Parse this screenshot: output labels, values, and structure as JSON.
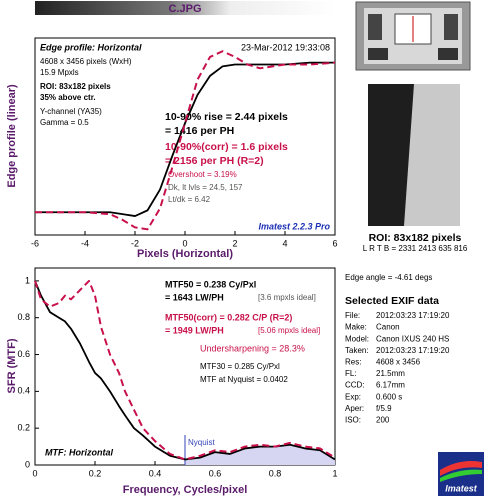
{
  "title": "C.JPG",
  "chart_data": [
    {
      "type": "line",
      "x_label": "Pixels (Horizontal)",
      "y_label": "Edge profile (linear)",
      "x": [
        -6,
        -5,
        -4,
        -3,
        -2.5,
        -2,
        -1.5,
        -1,
        -0.5,
        0,
        0.5,
        1,
        1.5,
        2,
        2.5,
        3,
        4,
        5,
        6
      ],
      "series": [
        {
          "color": "#000000",
          "values": [
            0.08,
            0.08,
            0.08,
            0.08,
            0.07,
            0.06,
            0.09,
            0.2,
            0.38,
            0.55,
            0.7,
            0.8,
            0.85,
            0.86,
            0.86,
            0.86,
            0.86,
            0.87,
            0.87
          ]
        },
        {
          "color": "#c8104a",
          "dashed": true,
          "values": [
            0.08,
            0.08,
            0.08,
            0.07,
            0.04,
            0.0,
            -0.01,
            0.1,
            0.32,
            0.55,
            0.78,
            0.9,
            0.93,
            0.9,
            0.86,
            0.84,
            0.86,
            0.86,
            0.87
          ]
        }
      ],
      "xlim": [
        -6,
        6
      ],
      "xticks": [
        -6,
        -4,
        -2,
        0,
        2,
        4,
        6
      ],
      "ylim": [
        -0.04,
        1
      ],
      "yticks": [],
      "annotations": [
        "Edge profile: Horizontal",
        "23-Mar-2012 19:33:08",
        "4608 x 3456 pixels (WxH)",
        "15.9 Mpxls",
        "ROI: 83x182 pixels",
        "35% above ctr.",
        "Y-channel (YA35)",
        "Gamma = 0.5",
        "10-90% rise = 2.44 pixels",
        "= 1416 per PH",
        "10-90%(corr) = 1.6 pixels",
        "= 2156 per PH  (R=2)",
        "Overshoot = 3.19%",
        "Dk, lt lvls = 24.5, 157",
        "Lt/dk = 6.42",
        "Imatest 2.2.3 Pro"
      ]
    },
    {
      "type": "line",
      "x_label": "Frequency, Cycles/pixel",
      "y_label": "SFR (MTF)",
      "x": [
        0,
        0.02,
        0.05,
        0.08,
        0.1,
        0.12,
        0.15,
        0.18,
        0.2,
        0.22,
        0.25,
        0.28,
        0.3,
        0.33,
        0.36,
        0.4,
        0.45,
        0.5,
        0.55,
        0.6,
        0.65,
        0.7,
        0.75,
        0.8,
        0.85,
        0.9,
        0.95,
        1
      ],
      "series": [
        {
          "color": "#000000",
          "values": [
            1,
            0.92,
            0.83,
            0.8,
            0.78,
            0.74,
            0.66,
            0.56,
            0.5,
            0.47,
            0.4,
            0.32,
            0.27,
            0.2,
            0.16,
            0.1,
            0.05,
            0.03,
            0.04,
            0.07,
            0.06,
            0.09,
            0.1,
            0.1,
            0.11,
            0.09,
            0.08,
            0.03
          ]
        },
        {
          "color": "#c8104a",
          "dashed": true,
          "values": [
            1,
            0.9,
            0.86,
            0.88,
            0.92,
            0.9,
            0.95,
            1,
            0.92,
            0.75,
            0.6,
            0.5,
            0.4,
            0.3,
            0.2,
            0.13,
            0.06,
            0.03,
            0.05,
            0.08,
            0.07,
            0.1,
            0.11,
            0.1,
            0.12,
            0.1,
            0.09,
            0.04
          ]
        }
      ],
      "xlim": [
        0,
        1
      ],
      "xticks": [
        0,
        {
          "value": 0.2,
          "label": "0.2"
        },
        {
          "value": 0.4,
          "label": "0.4"
        },
        {
          "value": 0.6,
          "label": "0.6"
        },
        {
          "value": 0.8,
          "label": "0.8"
        },
        1
      ],
      "ylim": [
        0,
        1.07
      ],
      "yticks": [
        0,
        0.2,
        0.4,
        0.6,
        0.8,
        1
      ],
      "nyquist": {
        "value": 0.5,
        "label": "Nyquist"
      },
      "annotations": [
        "MTF50 = 0.238 Cy/Pxl",
        "= 1643 LW/PH",
        "[3.6 mpxls ideal]",
        "MTF50(corr) = 0.282 C/P  (R=2)",
        "= 1949 LW/PH",
        "[5.06 mpxls ideal]",
        "Undersharpening = 28.3%",
        "MTF30 = 0.285 Cy/Pxl",
        "MTF at Nyquist = 0.0402",
        "MTF: Horizontal"
      ]
    }
  ],
  "roi": {
    "title": "ROI: 83x182 pixels",
    "coords": "L R T B = 2331 2413 635 816"
  },
  "edge_angle": "Edge angle = -4.61 degs",
  "exif": {
    "title": "Selected EXIF data",
    "rows": [
      [
        "File:",
        "2012:03:23 17:19:20"
      ],
      [
        "Make:",
        "Canon"
      ],
      [
        "Model:",
        "Canon IXUS 240 HS"
      ],
      [
        "Taken:",
        "2012:03:23 17:19:20"
      ],
      [
        "Res:",
        "4608 x 3456"
      ],
      [
        "FL:",
        "21.5mm"
      ],
      [
        "CCD:",
        "6.17mm"
      ],
      [
        "Exp:",
        "0.600 s"
      ],
      [
        "Aper:",
        "f/5.9"
      ],
      [
        "ISO:",
        "200"
      ]
    ]
  },
  "logo": "Imatest"
}
